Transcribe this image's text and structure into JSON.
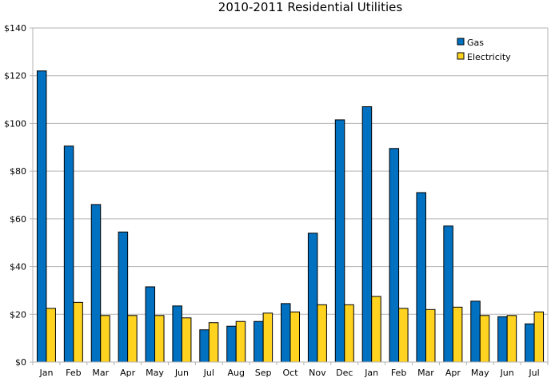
{
  "chart_data": {
    "type": "bar",
    "title": "2010-2011 Residential Utilities",
    "xlabel": "",
    "ylabel": "",
    "ylim": [
      0,
      140
    ],
    "ytick_labels": [
      "$0",
      "$20",
      "$40",
      "$60",
      "$80",
      "$100",
      "$120",
      "$140"
    ],
    "categories": [
      "Jan",
      "Feb",
      "Mar",
      "Apr",
      "May",
      "Jun",
      "Jul",
      "Aug",
      "Sep",
      "Oct",
      "Nov",
      "Dec",
      "Jan",
      "Feb",
      "Mar",
      "Apr",
      "May",
      "Jun",
      "Jul"
    ],
    "series": [
      {
        "name": "Gas",
        "color": "#0070c0",
        "values": [
          122,
          90.5,
          66,
          54.5,
          31.5,
          23.5,
          13.5,
          15,
          17,
          24.5,
          54,
          101.5,
          107,
          89.5,
          71,
          57,
          25.5,
          19,
          16
        ]
      },
      {
        "name": "Electricity",
        "color": "#ffd320",
        "values": [
          22.5,
          25,
          19.5,
          19.5,
          19.5,
          18.5,
          16.5,
          17,
          20.5,
          21,
          24,
          24,
          27.5,
          22.5,
          22,
          23,
          19.5,
          19.5,
          21
        ]
      }
    ],
    "grid": true,
    "legend_position": "top-right"
  }
}
